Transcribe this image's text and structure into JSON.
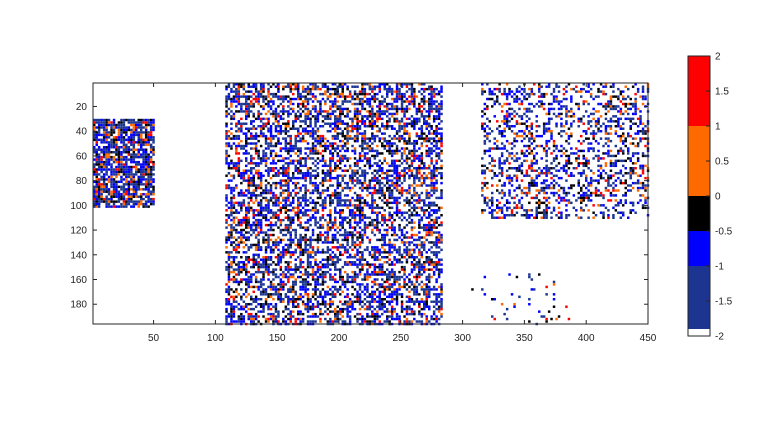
{
  "chart_data": {
    "type": "heatmap",
    "title": "",
    "xlabel": "",
    "ylabel": "",
    "xlim": [
      1,
      450
    ],
    "ylim": [
      1,
      196
    ],
    "y_reversed": true,
    "grid": false,
    "x_ticks": [
      50,
      100,
      150,
      200,
      250,
      300,
      350,
      400,
      450
    ],
    "y_ticks": [
      20,
      40,
      60,
      80,
      100,
      120,
      140,
      160,
      180
    ],
    "value_range": [
      -2,
      2
    ],
    "colorbar": {
      "placement": "right",
      "ticks": [
        2,
        1.5,
        1,
        0.5,
        0,
        -0.5,
        -1,
        -1.5,
        -2
      ],
      "bins": [
        {
          "from": -2.0,
          "to": -1.9,
          "color": "#ffffff"
        },
        {
          "from": -1.9,
          "to": -1.0,
          "color": "#1c3591"
        },
        {
          "from": -1.0,
          "to": -0.5,
          "color": "#0000ff"
        },
        {
          "from": -0.5,
          "to": 0.0,
          "color": "#000000"
        },
        {
          "from": 0.0,
          "to": 1.0,
          "color": "#ff6a00"
        },
        {
          "from": 1.0,
          "to": 2.0,
          "color": "#ff0000"
        }
      ]
    },
    "blobs": [
      {
        "x_range": [
          1,
          50
        ],
        "y_range": [
          30,
          100
        ],
        "density": 0.8
      },
      {
        "x_range": [
          108,
          282
        ],
        "y_range": [
          1,
          196
        ],
        "density": 0.55
      },
      {
        "x_range": [
          315,
          450
        ],
        "y_range": [
          1,
          110
        ],
        "density": 0.35
      },
      {
        "x_range": [
          305,
          385
        ],
        "y_range": [
          155,
          196
        ],
        "density": 0.05
      }
    ]
  }
}
